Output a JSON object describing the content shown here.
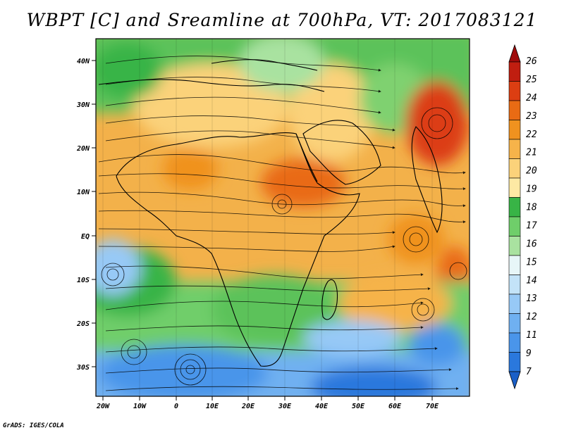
{
  "title": "WBPT [C] and Sreamline at 700hPa, VT: 2017083121",
  "credit": "GrADS: IGES/COLA",
  "axes": {
    "lon_labels": [
      "20W",
      "10W",
      "0",
      "10E",
      "20E",
      "30E",
      "40E",
      "50E",
      "60E",
      "70E"
    ],
    "lat_labels": [
      "40N",
      "30N",
      "20N",
      "10N",
      "EQ",
      "10S",
      "20S",
      "30S"
    ]
  },
  "colorbar": {
    "labels": [
      "7",
      "9",
      "11",
      "12",
      "13",
      "14",
      "15",
      "16",
      "17",
      "18",
      "19",
      "20",
      "21",
      "22",
      "23",
      "24",
      "25",
      "26"
    ],
    "colors": [
      "#1a5fc7",
      "#2a78dd",
      "#4a95ea",
      "#6fb0f1",
      "#97c9f6",
      "#c3e3f8",
      "#e7f6f8",
      "#a9e2a0",
      "#6fce6a",
      "#38b446",
      "#fde9a4",
      "#fbd27a",
      "#f6b34a",
      "#f0921f",
      "#e96b14",
      "#dc3e12",
      "#c01e10",
      "#a00b0b"
    ]
  }
}
